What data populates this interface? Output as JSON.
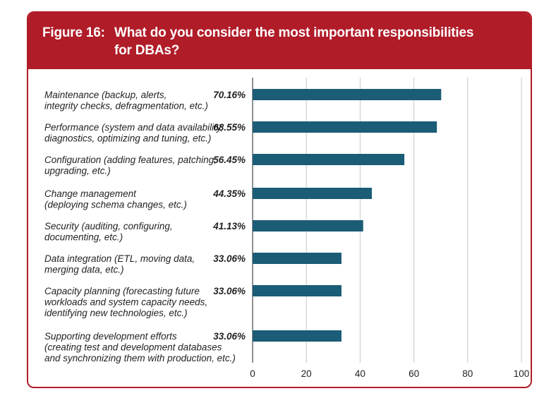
{
  "figure": {
    "number_label": "Figure 16:",
    "title_line1": "What do you consider the most important responsibilities",
    "title_line2": "for DBAs?"
  },
  "colors": {
    "header": "#b01c28",
    "bar": "#1b5c76",
    "gridline": "#c8c8c8"
  },
  "chart_data": {
    "type": "bar",
    "orientation": "horizontal",
    "title": "What do you consider the most important responsibilities for DBAs?",
    "categories": [
      [
        "Maintenance (backup, alerts,",
        "integrity checks, defragmentation, etc.)"
      ],
      [
        "Performance (system and data availability,",
        "diagnostics, optimizing and tuning, etc.)"
      ],
      [
        "Configuration (adding features, patching,",
        "upgrading, etc.)"
      ],
      [
        "Change management",
        "(deploying schema changes, etc.)"
      ],
      [
        "Security (auditing, configuring,",
        "documenting, etc.)"
      ],
      [
        "Data integration (ETL, moving data,",
        "merging data, etc.)"
      ],
      [
        "Capacity planning (forecasting future",
        "workloads and system capacity needs,",
        "identifying new technologies, etc.)"
      ],
      [
        "Supporting development efforts",
        "(creating test and development databases",
        "and synchronizing them with production, etc.)"
      ]
    ],
    "values": [
      70.16,
      68.55,
      56.45,
      44.35,
      41.13,
      33.06,
      33.06,
      33.06
    ],
    "value_labels": [
      "70.16%",
      "68.55%",
      "56.45%",
      "44.35%",
      "41.13%",
      "33.06%",
      "33.06%",
      "33.06%"
    ],
    "xlim": [
      0,
      100
    ],
    "xticks": [
      0,
      20,
      40,
      60,
      80,
      100
    ],
    "grid": true,
    "legend": "none"
  }
}
